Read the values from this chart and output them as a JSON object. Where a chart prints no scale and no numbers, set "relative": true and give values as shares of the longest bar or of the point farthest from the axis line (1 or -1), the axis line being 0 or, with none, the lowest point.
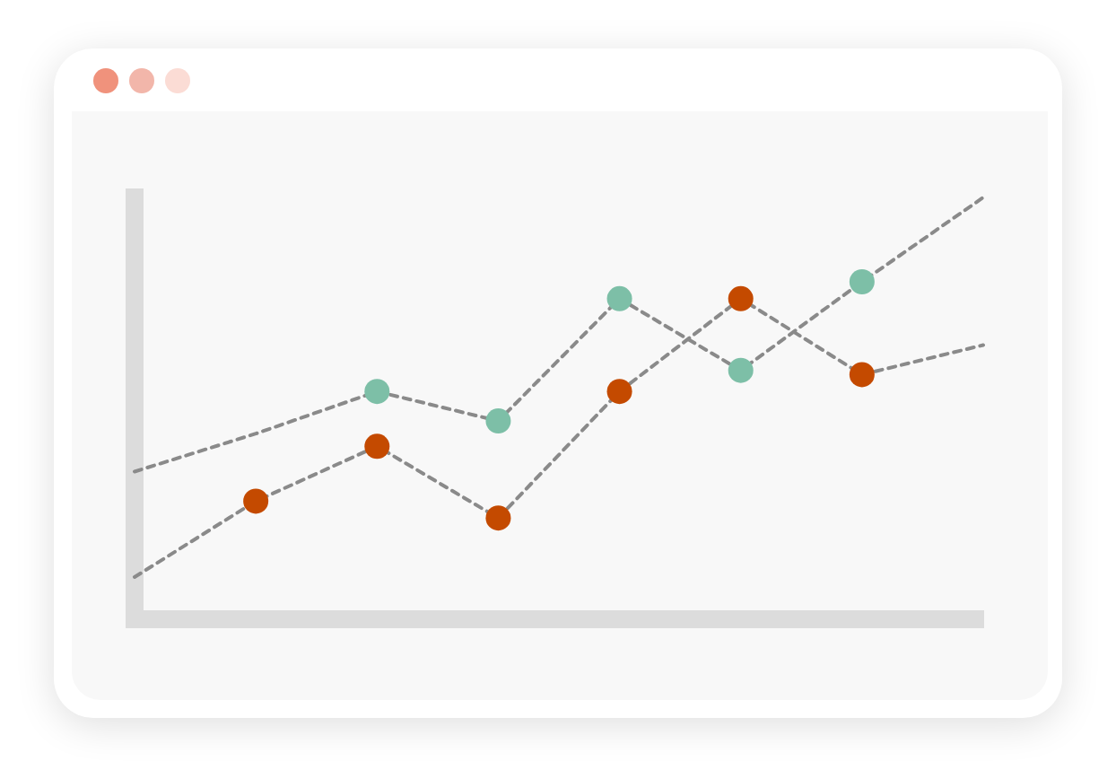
{
  "chart_data": {
    "type": "line",
    "relative": true,
    "line_style": "dashed",
    "marker": "circle",
    "categories": [
      null,
      null,
      null,
      null,
      null,
      null,
      null,
      null
    ],
    "series": [
      {
        "color": "#8a8a8a",
        "values": [
          0.35,
          0.44,
          0.54,
          0.47,
          0.76,
          0.59,
          0.8,
          1
        ],
        "colors": [
          null,
          null,
          "#7dbfa7",
          "#7dbfa7",
          "#7dbfa7",
          "#7dbfa7",
          "#7dbfa7",
          null
        ]
      },
      {
        "color": "#8a8a8a",
        "values": [
          0.1,
          0.28,
          0.41,
          0.24,
          0.54,
          0.76,
          0.58,
          0.65
        ],
        "colors": [
          null,
          "#c44a00",
          "#c44a00",
          "#c44a00",
          "#c44a00",
          "#c44a00",
          "#c44a00",
          null
        ]
      }
    ]
  }
}
